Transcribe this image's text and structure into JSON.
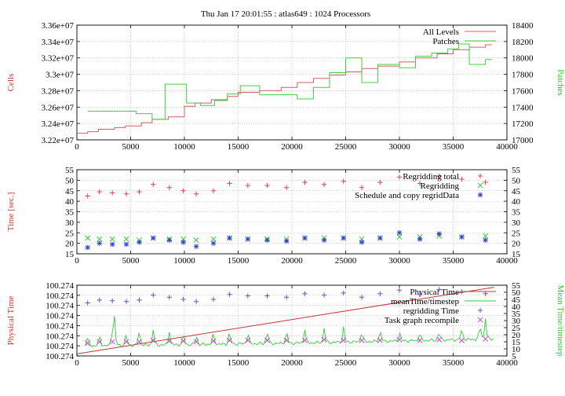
{
  "title": "Thu Jan 17 20:01:55 : atlas649 : 1024 Processors",
  "chart_data": [
    {
      "type": "line",
      "xlim": [
        0,
        40000
      ],
      "xticks": [
        0,
        5000,
        10000,
        15000,
        20000,
        25000,
        30000,
        35000,
        40000
      ],
      "ylabel": "Cells",
      "ylabel_color": "#c8302a",
      "ylim": [
        32200000,
        33600000
      ],
      "yticks": [
        "3.22e+07",
        "3.24e+07",
        "3.26e+07",
        "3.28e+07",
        "3.3e+07",
        "3.32e+07",
        "3.34e+07",
        "3.36e+07"
      ],
      "y2label": "Patches",
      "y2label_color": "#22cc22",
      "y2lim": [
        17000,
        18400
      ],
      "y2ticks": [
        17000,
        17200,
        17400,
        17600,
        17800,
        18000,
        18200,
        18400
      ],
      "legend_position": "top-right",
      "grid": true,
      "series": [
        {
          "name": "All Levels",
          "axis": "left",
          "style": "step",
          "color": "#d06060",
          "x": [
            0,
            1000,
            2000,
            3500,
            4500,
            6000,
            7000,
            8500,
            10000,
            11000,
            12500,
            14000,
            15000,
            17000,
            19000,
            20500,
            22000,
            23500,
            25000,
            26500,
            28000,
            30000,
            31500,
            33500,
            35000,
            36500,
            38000
          ],
          "values": [
            32280000,
            32300000,
            32330000,
            32350000,
            32370000,
            32410000,
            32450000,
            32480000,
            32610000,
            32650000,
            32690000,
            32730000,
            32780000,
            32800000,
            32840000,
            32900000,
            32950000,
            32990000,
            33030000,
            33070000,
            33100000,
            33150000,
            33200000,
            33250000,
            33300000,
            33330000,
            33360000
          ]
        },
        {
          "name": "Patches",
          "axis": "right",
          "style": "step",
          "color": "#44cc44",
          "x": [
            1000,
            5500,
            7000,
            8200,
            10200,
            11500,
            12800,
            14000,
            15200,
            17000,
            19000,
            20500,
            22000,
            23500,
            25000,
            26500,
            28000,
            30000,
            31500,
            33000,
            34500,
            35500,
            36500,
            38000
          ],
          "values": [
            17350,
            17320,
            17250,
            17680,
            17450,
            17420,
            17480,
            17560,
            17660,
            17550,
            17550,
            17500,
            17640,
            17820,
            18000,
            17700,
            17920,
            17880,
            18020,
            18060,
            18110,
            18170,
            17920,
            17980
          ]
        }
      ]
    },
    {
      "type": "scatter",
      "xlim": [
        0,
        40000
      ],
      "xticks": [
        0,
        5000,
        10000,
        15000,
        20000,
        25000,
        30000,
        35000,
        40000
      ],
      "ylabel": "Time [sec.]",
      "ylabel_color": "#c8302a",
      "ylim": [
        15,
        55
      ],
      "yticks": [
        15,
        20,
        25,
        30,
        35,
        40,
        45,
        50,
        55
      ],
      "y2lim": [
        15,
        55
      ],
      "y2ticks": [
        15,
        20,
        25,
        30,
        35,
        40,
        45,
        50,
        55
      ],
      "legend_position": "top-right",
      "grid": true,
      "series": [
        {
          "name": "Regridding total",
          "marker": "plus",
          "color": "#dd4444",
          "x": [
            1000,
            2100,
            3300,
            4600,
            5800,
            7100,
            8600,
            9900,
            11100,
            12700,
            14200,
            15900,
            17700,
            19500,
            21200,
            23000,
            24800,
            26500,
            28200,
            30000,
            31900,
            33700,
            35800,
            38000
          ],
          "values": [
            42.5,
            44.5,
            44,
            43.5,
            44.5,
            48,
            46.5,
            45,
            43.5,
            45,
            48.5,
            47.5,
            47.5,
            46.5,
            49,
            48,
            49.5,
            46.5,
            49,
            51.5,
            48.5,
            52,
            50.5,
            49
          ]
        },
        {
          "name": "Regridding",
          "marker": "x",
          "color": "#33cc33",
          "x": [
            1000,
            2100,
            3300,
            4600,
            5800,
            7100,
            8600,
            9900,
            11100,
            12700,
            14200,
            15900,
            17700,
            19500,
            21200,
            23000,
            24800,
            26500,
            28200,
            30000,
            31900,
            33700,
            35800,
            38000
          ],
          "values": [
            22.5,
            22,
            22,
            22,
            21.5,
            22.5,
            22,
            22,
            21.5,
            22,
            22.5,
            22,
            22,
            22,
            22.5,
            22.5,
            22.5,
            22,
            22.5,
            23,
            23,
            23.5,
            23,
            23.5
          ]
        },
        {
          "name": "Schedule and copy regridData",
          "marker": "star",
          "color": "#3344cc",
          "x": [
            1000,
            2100,
            3300,
            4600,
            5800,
            7100,
            8600,
            9900,
            11100,
            12700,
            14200,
            15900,
            17700,
            19500,
            21200,
            23000,
            24800,
            26500,
            28200,
            30000,
            31900,
            33700,
            35800,
            38000
          ],
          "values": [
            18,
            20,
            19.5,
            19.5,
            20.5,
            22.5,
            21.5,
            20.5,
            18.5,
            20,
            22.5,
            22,
            21.5,
            21,
            22.5,
            21.5,
            22.5,
            20.5,
            22.5,
            25,
            22,
            24.5,
            23,
            21.5
          ]
        }
      ]
    },
    {
      "type": "line",
      "xlim": [
        0,
        40000
      ],
      "xticks": [
        0,
        5000,
        10000,
        15000,
        20000,
        25000,
        30000,
        35000,
        40000
      ],
      "ylabel": "Physical Time",
      "ylabel_color": "#c8302a",
      "ylim": [
        0,
        7
      ],
      "yticks": [
        "100.274",
        "100.274",
        "100.274",
        "100.274",
        "100.274",
        "100.274",
        "100.274",
        "100.274"
      ],
      "y2label": "Mean Time/timestep",
      "y2label_color": "#22cc22",
      "y2lim": [
        5,
        55
      ],
      "y2ticks": [
        5,
        10,
        15,
        20,
        25,
        30,
        35,
        40,
        45,
        50,
        55
      ],
      "legend_position": "top-right",
      "grid": true,
      "series": [
        {
          "name": "Physical Time",
          "axis": "left",
          "style": "line",
          "color": "#cc3333",
          "x": [
            0,
            38800
          ],
          "values": [
            0.2,
            6.8
          ]
        },
        {
          "name": "meanTime/timestep",
          "axis": "right",
          "style": "spiky-line",
          "color": "#33cc33",
          "baseline": [
            [
              0,
              12
            ],
            [
              20000,
              14
            ],
            [
              38800,
              17
            ]
          ],
          "spikes_x": [
            1000,
            2100,
            3300,
            3500,
            4600,
            5800,
            7100,
            8600,
            9900,
            11100,
            12700,
            14200,
            15900,
            17700,
            19500,
            21200,
            23000,
            24800,
            26500,
            28200,
            30000,
            31900,
            33700,
            35800,
            37500,
            38000
          ],
          "spikes_y": [
            21,
            22,
            28,
            31,
            23,
            28,
            24,
            23,
            23,
            22,
            24,
            25,
            24,
            26,
            25,
            24,
            25,
            25,
            25,
            26,
            24,
            23,
            24,
            27,
            30,
            32
          ]
        },
        {
          "name": "regridding Time",
          "axis": "right",
          "style": "markers",
          "marker": "plus",
          "color": "#6655cc",
          "x": [
            1000,
            2100,
            3300,
            4600,
            5800,
            7100,
            8600,
            9900,
            11100,
            12700,
            14200,
            15900,
            17700,
            19500,
            21200,
            23000,
            24800,
            26500,
            28200,
            30000,
            31900,
            33700,
            35800,
            38000
          ],
          "values": [
            42.5,
            44.5,
            44,
            43.5,
            44.5,
            48,
            46.5,
            45,
            43.5,
            45,
            48.5,
            47.5,
            47.5,
            46.5,
            49,
            48,
            49.5,
            46.5,
            49,
            51.5,
            48.5,
            52,
            50.5,
            49
          ]
        },
        {
          "name": "Task graph recompile",
          "axis": "right",
          "style": "markers",
          "marker": "x",
          "color": "#cc44cc",
          "x": [
            1000,
            2100,
            3300,
            4600,
            5800,
            7100,
            8600,
            9900,
            11100,
            12700,
            14200,
            15900,
            17700,
            19500,
            21200,
            23000,
            24800,
            26500,
            28200,
            30000,
            31900,
            33700,
            35800,
            38000
          ],
          "values": [
            14,
            15,
            15,
            15,
            15,
            16,
            15.5,
            15.5,
            15,
            15.5,
            16,
            16,
            16,
            16,
            16,
            16.5,
            16,
            16,
            16,
            16.5,
            16,
            16.5,
            16,
            17
          ]
        }
      ]
    }
  ]
}
